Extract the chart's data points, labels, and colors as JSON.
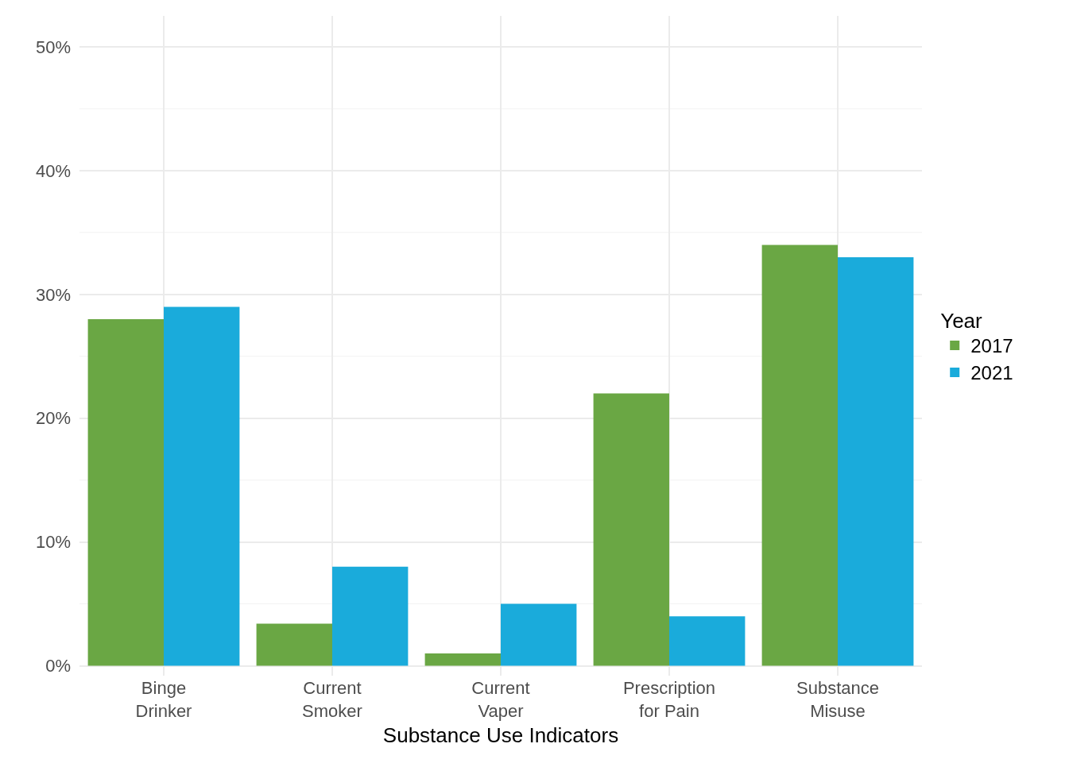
{
  "chart_data": {
    "type": "bar",
    "xlabel": "Substance Use Indicators",
    "legend_title": "Year",
    "categories": [
      "Binge\nDrinker",
      "Current\nSmoker",
      "Current\nVaper",
      "Prescription\nfor Pain",
      "Substance\nMisuse"
    ],
    "series": [
      {
        "name": "2017",
        "color": "#6aa744",
        "values": [
          28,
          3.4,
          1,
          22,
          34
        ]
      },
      {
        "name": "2021",
        "color": "#1aabdb",
        "values": [
          29,
          8,
          5,
          4,
          33
        ]
      }
    ],
    "ylim": [
      -0.8,
      52.5
    ],
    "yticks": [
      {
        "value": 0,
        "label": "0%"
      },
      {
        "value": 5,
        "label": null
      },
      {
        "value": 10,
        "label": "10%"
      },
      {
        "value": 15,
        "label": null
      },
      {
        "value": 20,
        "label": "20%"
      },
      {
        "value": 25,
        "label": null
      },
      {
        "value": 30,
        "label": "30%"
      },
      {
        "value": 35,
        "label": null
      },
      {
        "value": 40,
        "label": "40%"
      },
      {
        "value": 45,
        "label": null
      },
      {
        "value": 50,
        "label": "50%"
      }
    ],
    "grid": true,
    "legend": "right"
  }
}
